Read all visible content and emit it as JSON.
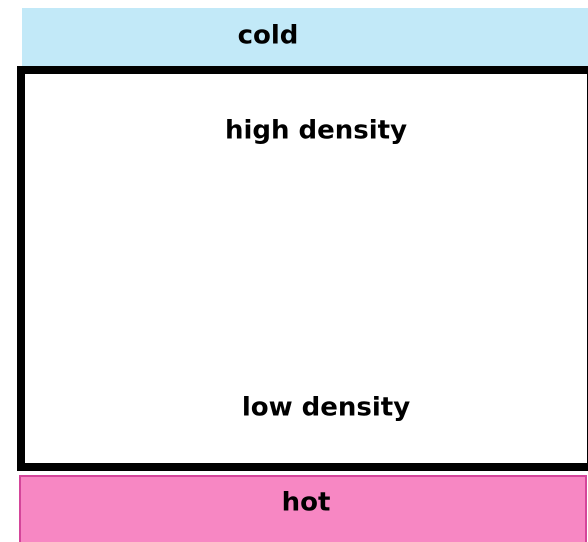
{
  "top": {
    "label": "cold"
  },
  "box": {
    "top_label": "high density",
    "bottom_label": "low density"
  },
  "bottom": {
    "label": "hot"
  }
}
